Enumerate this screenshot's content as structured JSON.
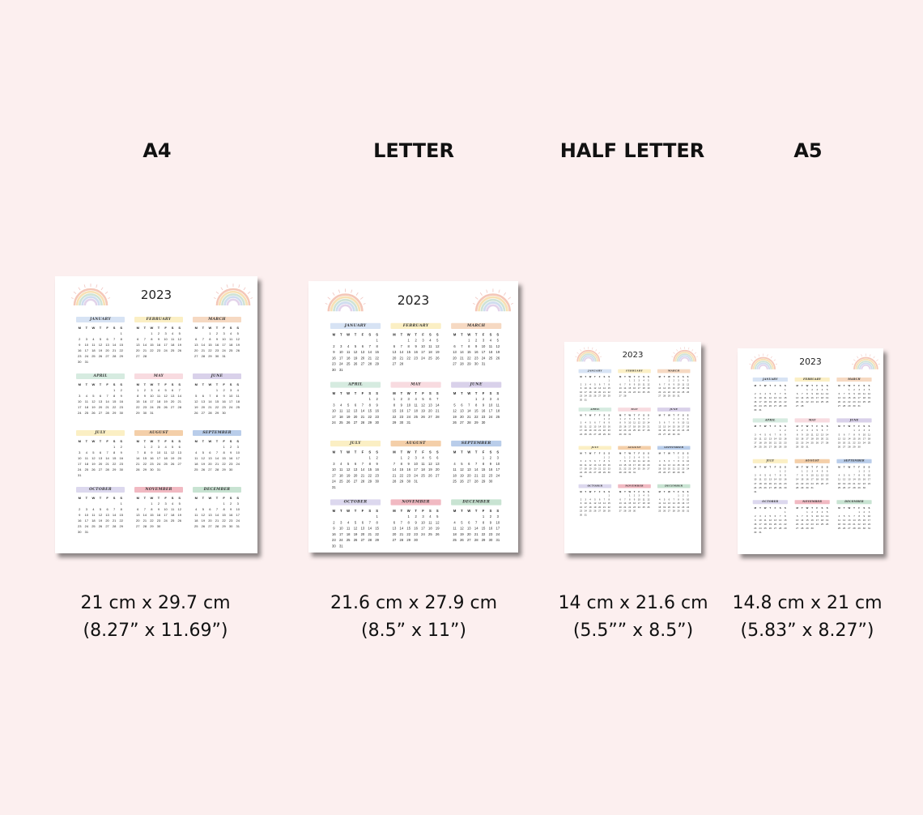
{
  "columns": [
    {
      "title": "A4",
      "dim_line1": "21 cm x 29.7 cm",
      "dim_line2": "(8.27” x 11.69”)"
    },
    {
      "title": "LETTER",
      "dim_line1": "21.6 cm x 27.9 cm",
      "dim_line2": "(8.5” x 11”)"
    },
    {
      "title": "HALF LETTER",
      "dim_line1": "14 cm x 21.6 cm",
      "dim_line2": "(5.5”” x 8.5”)"
    },
    {
      "title": "A5",
      "dim_line1": "14.8 cm x 21 cm",
      "dim_line2": "(5.83” x 8.27”)"
    }
  ],
  "calendar": {
    "year": "2023",
    "weekday_headers": [
      "M",
      "T",
      "W",
      "T",
      "F",
      "S",
      "S"
    ],
    "months": [
      {
        "name": "JANUARY",
        "color": "#d7e3f4",
        "offset": 6,
        "days": 31
      },
      {
        "name": "FEBRUARY",
        "color": "#fbefc4",
        "offset": 2,
        "days": 28
      },
      {
        "name": "MARCH",
        "color": "#f6d9c2",
        "offset": 2,
        "days": 31
      },
      {
        "name": "APRIL",
        "color": "#d6ebe0",
        "offset": 5,
        "days": 30
      },
      {
        "name": "MAY",
        "color": "#f8dbe0",
        "offset": 0,
        "days": 31
      },
      {
        "name": "JUNE",
        "color": "#d9d1ea",
        "offset": 3,
        "days": 30
      },
      {
        "name": "JULY",
        "color": "#fbefc4",
        "offset": 5,
        "days": 31
      },
      {
        "name": "AUGUST",
        "color": "#f4cfa9",
        "offset": 1,
        "days": 31
      },
      {
        "name": "SEPTEMBER",
        "color": "#b9cdea",
        "offset": 4,
        "days": 30
      },
      {
        "name": "OCTOBER",
        "color": "#dcd8ee",
        "offset": 6,
        "days": 31
      },
      {
        "name": "NOVEMBER",
        "color": "#f1b9c2",
        "offset": 2,
        "days": 30
      },
      {
        "name": "DECEMBER",
        "color": "#c8e3d2",
        "offset": 4,
        "days": 31
      }
    ]
  }
}
